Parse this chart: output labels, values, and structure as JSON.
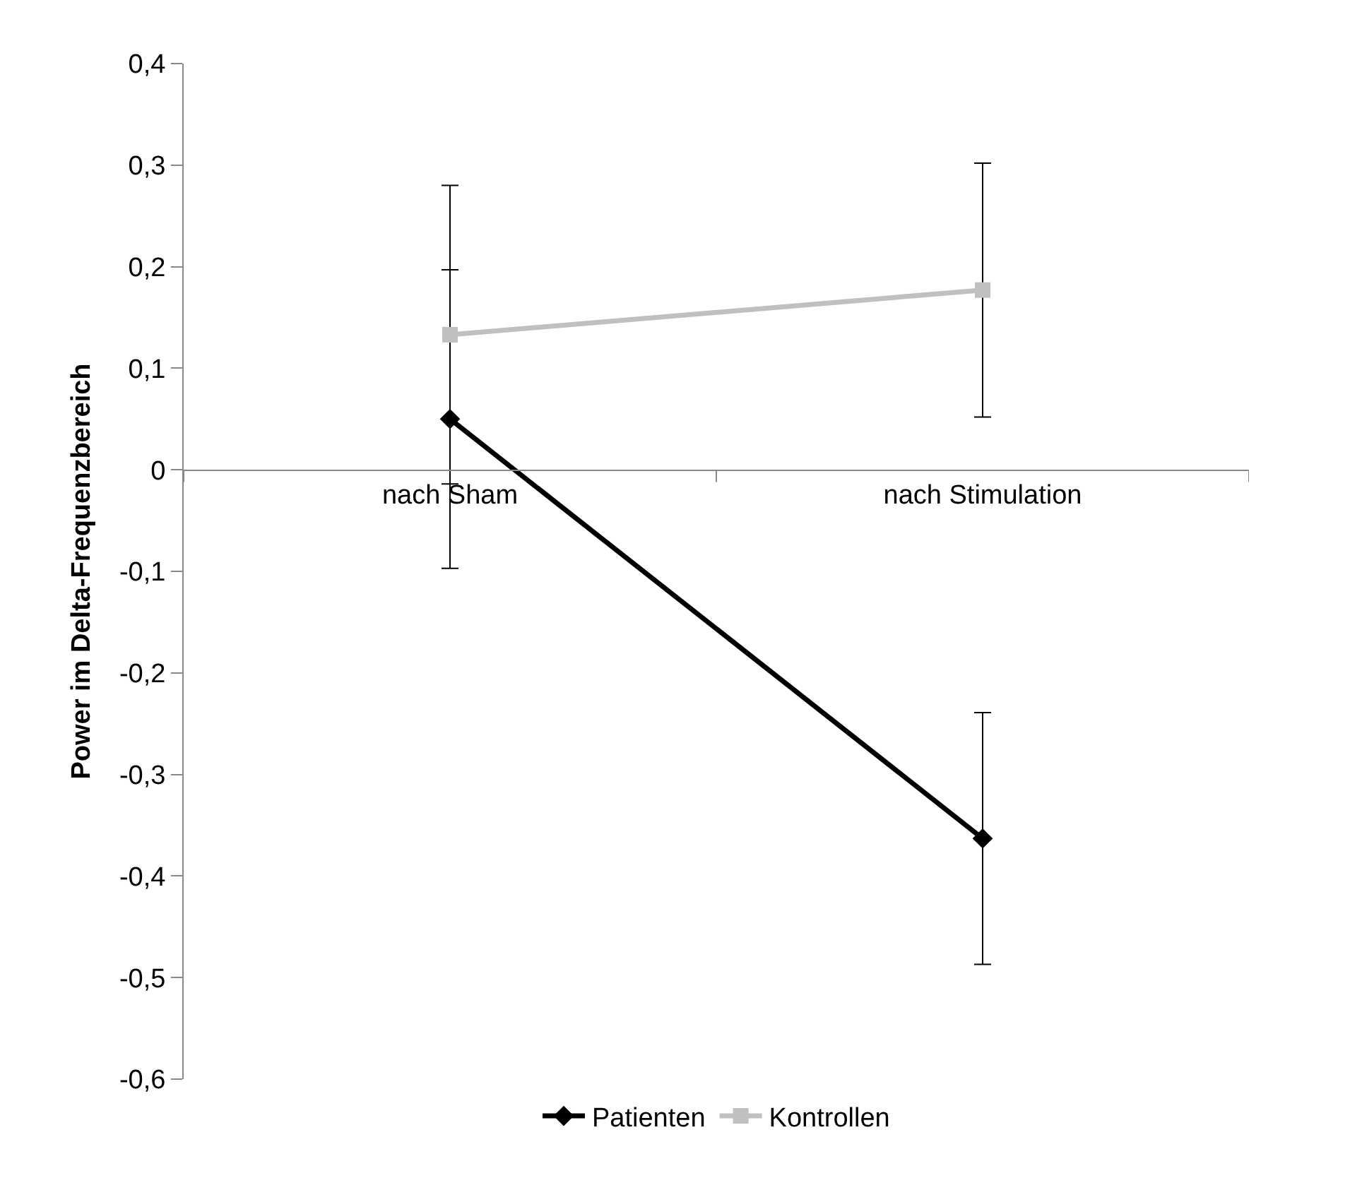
{
  "chart_data": {
    "type": "line",
    "ylabel": "Power im Delta-Frequenzbereich",
    "categories": [
      "nach Sham",
      "nach Stimulation"
    ],
    "series": [
      {
        "name": "Patienten",
        "color": "#000000",
        "marker": "diamond",
        "values": [
          0.05,
          -0.363
        ],
        "errors": [
          0.147,
          0.124
        ]
      },
      {
        "name": "Kontrollen",
        "color": "#c0c0c0",
        "marker": "square",
        "values": [
          0.133,
          0.177
        ],
        "errors": [
          0.147,
          0.125
        ]
      }
    ],
    "ylim": [
      -0.6,
      0.4
    ],
    "yticks": [
      {
        "value": -0.6,
        "label": "-0,6"
      },
      {
        "value": -0.5,
        "label": "-0,5"
      },
      {
        "value": -0.4,
        "label": "-0,4"
      },
      {
        "value": -0.3,
        "label": "-0,3"
      },
      {
        "value": -0.2,
        "label": "-0,2"
      },
      {
        "value": -0.1,
        "label": "-0,1"
      },
      {
        "value": 0,
        "label": "0"
      },
      {
        "value": 0.1,
        "label": "0,1"
      },
      {
        "value": 0.2,
        "label": "0,2"
      },
      {
        "value": 0.3,
        "label": "0,3"
      },
      {
        "value": 0.4,
        "label": "0,4"
      }
    ],
    "legend": "bottom"
  }
}
